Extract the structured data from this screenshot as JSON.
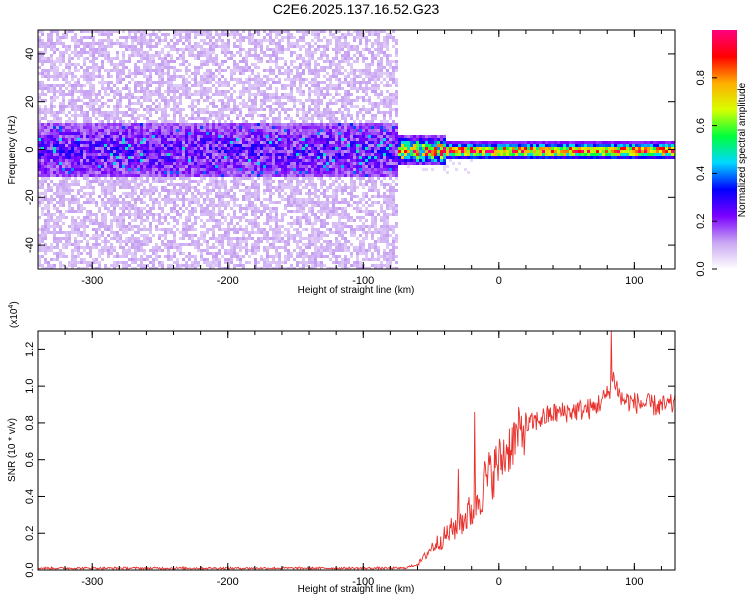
{
  "title": "C2E6.2025.137.16.52.G23",
  "chart_data": [
    {
      "type": "heatmap",
      "title": "",
      "xlabel": "Height of straight line (km)",
      "ylabel": "Frequency (Hz)",
      "xlim": [
        -340,
        130
      ],
      "ylim": [
        -50,
        50
      ],
      "x_ticks": [
        -300,
        -200,
        -100,
        0,
        100
      ],
      "y_ticks": [
        -40,
        -20,
        0,
        20,
        40
      ],
      "colorbar": {
        "label": "Normalized spectral amplitude",
        "range": [
          0,
          1
        ],
        "ticks": [
          0.0,
          0.2,
          0.4,
          0.6,
          0.8
        ],
        "tick_labels": [
          "0.0",
          "0.2",
          "0.4",
          "0.6",
          "0.8"
        ],
        "colormap": [
          "#ffffff",
          "#c9a6f2",
          "#7a00ff",
          "#0000ff",
          "#00d8ff",
          "#00ff3c",
          "#d8ff00",
          "#ffae00",
          "#ff0000",
          "#ff0080"
        ]
      },
      "features": {
        "noise_region_x": [
          -340,
          -75
        ],
        "tone_region_x": [
          -75,
          130
        ],
        "tone_frequency_hz": 0,
        "noise_band_halfwidth_hz": 8
      }
    },
    {
      "type": "line",
      "title": "",
      "xlabel": "Height of straight line (km)",
      "ylabel": "SNR (10 * v/v)",
      "y_multiplier_label": "(x10",
      "y_multiplier_exp": "4",
      "xlim": [
        -340,
        130
      ],
      "ylim": [
        0,
        1.3
      ],
      "x_ticks": [
        -300,
        -200,
        -100,
        0,
        100
      ],
      "y_ticks": [
        0.0,
        0.2,
        0.4,
        0.6,
        0.8,
        1.0,
        1.2
      ],
      "y_tick_labels": [
        "0.0",
        "0.2",
        "0.4",
        "0.6",
        "0.8",
        "1.0",
        "1.2"
      ],
      "series": [
        {
          "color": "#e8312c",
          "x": [
            -340,
            -300,
            -250,
            -200,
            -150,
            -100,
            -70,
            -60,
            -55,
            -50,
            -40,
            -30,
            -20,
            -15,
            -10,
            0,
            10,
            20,
            30,
            40,
            50,
            60,
            70,
            80,
            85,
            90,
            100,
            110,
            120,
            130
          ],
          "y": [
            0.01,
            0.01,
            0.01,
            0.01,
            0.01,
            0.01,
            0.01,
            0.03,
            0.07,
            0.12,
            0.18,
            0.25,
            0.32,
            0.4,
            0.48,
            0.58,
            0.7,
            0.78,
            0.82,
            0.85,
            0.86,
            0.87,
            0.88,
            0.95,
            1.05,
            0.93,
            0.91,
            0.9,
            0.89,
            0.9
          ]
        }
      ],
      "spikes": [
        {
          "x": -30,
          "y": 0.55
        },
        {
          "x": -18,
          "y": 0.86
        },
        {
          "x": 83,
          "y": 1.3
        }
      ]
    }
  ]
}
